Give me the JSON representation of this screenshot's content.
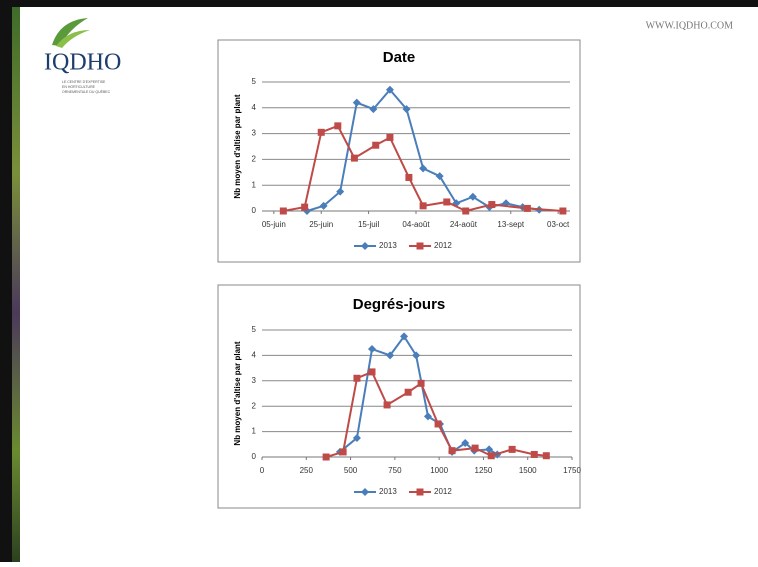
{
  "header": {
    "logo": "IQDHO",
    "logo_tagline": [
      "LE CENTRE D'EXPERTISE",
      "EN HORTICULTURE",
      "ORNEMENTALE DU QUÉBEC"
    ],
    "website": "WWW.IQDHO.COM"
  },
  "chart_data": [
    {
      "type": "line",
      "title": "Date",
      "ylabel": "Nb moyen d'altise par plant",
      "xlim": [
        -5,
        125
      ],
      "xticks": [
        {
          "value": 0,
          "label": "05-juin"
        },
        {
          "value": 20,
          "label": "25-juin"
        },
        {
          "value": 40,
          "label": "15-juil"
        },
        {
          "value": 60,
          "label": "04-août"
        },
        {
          "value": 80,
          "label": "24-août"
        },
        {
          "value": 100,
          "label": "13-sept"
        },
        {
          "value": 120,
          "label": "03-oct"
        }
      ],
      "ylim": [
        0,
        5
      ],
      "yticks": [
        0,
        1,
        2,
        3,
        4,
        5
      ],
      "grid": true,
      "legend": "bottom",
      "series": [
        {
          "name": "2013",
          "color": "#4a7ebb",
          "marker": "diamond",
          "x": [
            14,
            21,
            28,
            35,
            42,
            49,
            56,
            63,
            70,
            77,
            84,
            91,
            98,
            105,
            112
          ],
          "values": [
            0,
            0.2,
            0.75,
            4.2,
            3.95,
            4.7,
            3.95,
            1.65,
            1.35,
            0.3,
            0.55,
            0.15,
            0.3,
            0.15,
            0.05
          ]
        },
        {
          "name": "2012",
          "color": "#be4b48",
          "marker": "square",
          "x": [
            4,
            13,
            20,
            27,
            34,
            43,
            49,
            57,
            63,
            73,
            81,
            92,
            107,
            122
          ],
          "values": [
            0,
            0.15,
            3.05,
            3.3,
            2.05,
            2.55,
            2.85,
            1.3,
            0.2,
            0.35,
            0,
            0.25,
            0.1,
            0
          ]
        }
      ]
    },
    {
      "type": "line",
      "title": "Degrés-jours",
      "ylabel": "Nb moyen d'altise par plant",
      "xlim": [
        0,
        1750
      ],
      "xticks": [
        0,
        250,
        500,
        750,
        1000,
        1250,
        1500,
        1750
      ],
      "ylim": [
        0,
        5
      ],
      "yticks": [
        0,
        1,
        2,
        3,
        4,
        5
      ],
      "grid": true,
      "legend": "bottom",
      "series": [
        {
          "name": "2013",
          "color": "#4a7ebb",
          "marker": "diamond",
          "x": [
            440,
            536,
            621,
            723,
            802,
            870,
            937,
            1005,
            1073,
            1147,
            1198,
            1282,
            1328
          ],
          "values": [
            0.2,
            0.75,
            4.25,
            4.0,
            4.75,
            4.0,
            1.6,
            1.3,
            0.2,
            0.55,
            0.25,
            0.3,
            0.1
          ]
        },
        {
          "name": "2012",
          "color": "#be4b48",
          "marker": "square",
          "x": [
            362,
            458,
            536,
            621,
            706,
            825,
            898,
            994,
            1073,
            1203,
            1294,
            1412,
            1537,
            1605
          ],
          "values": [
            0,
            0.2,
            3.1,
            3.35,
            2.05,
            2.55,
            2.9,
            1.3,
            0.25,
            0.35,
            0.05,
            0.3,
            0.1,
            0.05
          ]
        }
      ]
    }
  ]
}
